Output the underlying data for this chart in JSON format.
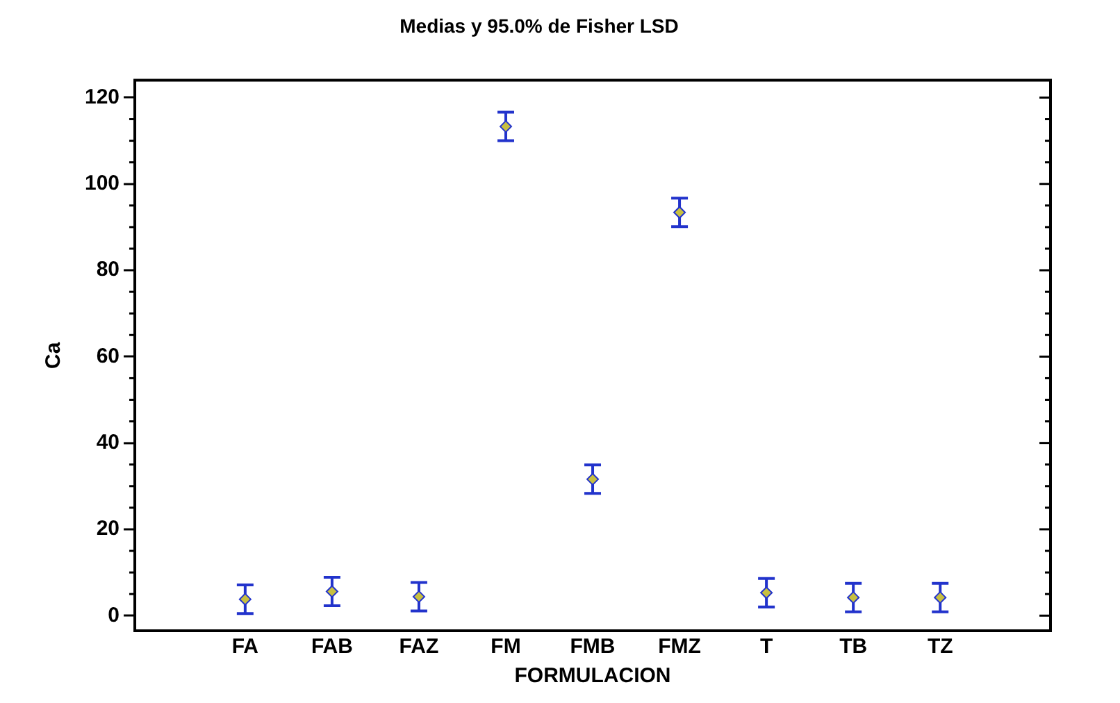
{
  "chart_data": {
    "type": "scatter",
    "title": "Medias y 95.0% de Fisher LSD",
    "xlabel": "FORMULACION",
    "ylabel": "Ca",
    "categories": [
      "FA",
      "FAB",
      "FAZ",
      "FM",
      "FMB",
      "FMZ",
      "T",
      "TB",
      "TZ"
    ],
    "series": [
      {
        "color": "#2233cc",
        "values": [
          3.8,
          5.6,
          4.4,
          113.3,
          31.6,
          93.4,
          5.3,
          4.2,
          4.2
        ],
        "errors": [
          3.3,
          3.3,
          3.3,
          3.3,
          3.3,
          3.3,
          3.3,
          3.3,
          3.3
        ]
      }
    ],
    "ylim": [
      -3.5,
      124
    ],
    "yticks": [
      0,
      20,
      40,
      60,
      80,
      100,
      120
    ],
    "grid": false,
    "legend": false,
    "marker": "diamond"
  }
}
